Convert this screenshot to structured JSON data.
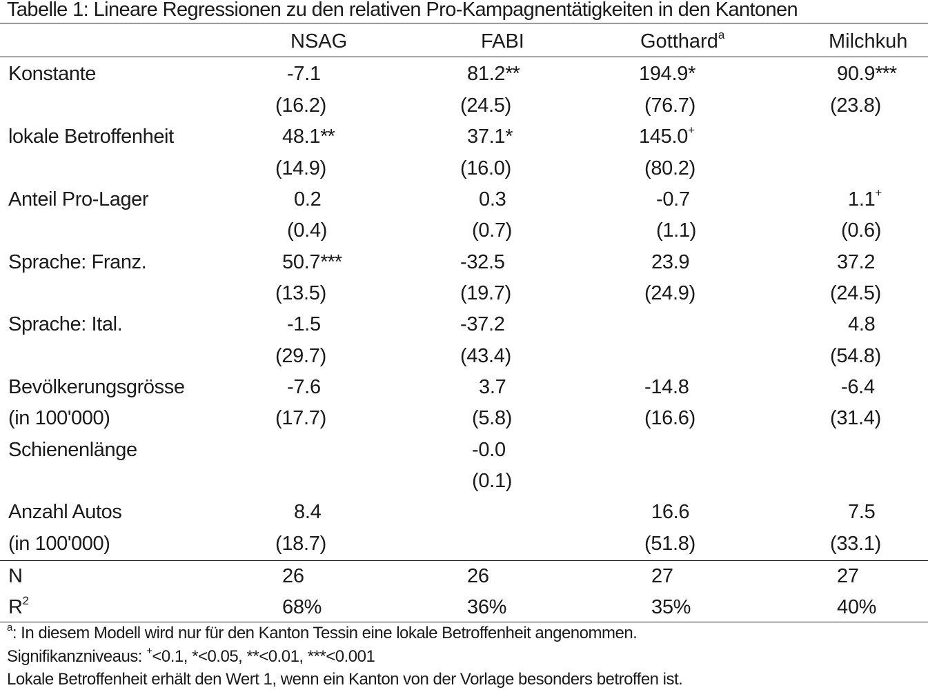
{
  "caption": "Tabelle 1: Lineare Regressionen zu den relativen Pro-Kampagnentätigkeiten in den Kantonen",
  "columns": [
    {
      "label": "NSAG",
      "sup": ""
    },
    {
      "label": "FABI",
      "sup": ""
    },
    {
      "label": "Gotthard",
      "sup": "a"
    },
    {
      "label": "Milchkuh",
      "sup": ""
    }
  ],
  "rows": {
    "konstante": {
      "label": "Konstante",
      "coef": [
        {
          "v": "-7.1",
          "s": "",
          "sup": ""
        },
        {
          "v": "81.2",
          "s": "**",
          "sup": ""
        },
        {
          "v": "194.9",
          "s": "*",
          "sup": ""
        },
        {
          "v": "90.9",
          "s": "***",
          "sup": ""
        }
      ],
      "se": [
        "(16.2)",
        "(24.5)",
        "(76.7)",
        "(23.8)"
      ]
    },
    "lokale": {
      "label": "lokale Betroffenheit",
      "coef": [
        {
          "v": "48.1",
          "s": "**",
          "sup": ""
        },
        {
          "v": "37.1",
          "s": "*",
          "sup": ""
        },
        {
          "v": "145.0",
          "s": "",
          "sup": "+"
        },
        {
          "v": "",
          "s": "",
          "sup": ""
        }
      ],
      "se": [
        "(14.9)",
        "(16.0)",
        "(80.2)",
        ""
      ]
    },
    "anteil": {
      "label": "Anteil Pro-Lager",
      "coef": [
        {
          "v": "0.2",
          "s": "",
          "sup": ""
        },
        {
          "v": "0.3",
          "s": "",
          "sup": ""
        },
        {
          "v": "-0.7",
          "s": "",
          "sup": ""
        },
        {
          "v": "1.1",
          "s": "",
          "sup": "+"
        }
      ],
      "se": [
        "(0.4)",
        "(0.7)",
        "(1.1)",
        "(0.6)"
      ]
    },
    "franz": {
      "label": "Sprache: Franz.",
      "coef": [
        {
          "v": "50.7",
          "s": "***",
          "sup": ""
        },
        {
          "v": "-32.5",
          "s": "",
          "sup": ""
        },
        {
          "v": "23.9",
          "s": "",
          "sup": ""
        },
        {
          "v": "37.2",
          "s": "",
          "sup": ""
        }
      ],
      "se": [
        "(13.5)",
        "(19.7)",
        "(24.9)",
        "(24.5)"
      ]
    },
    "ital": {
      "label": "Sprache: Ital.",
      "coef": [
        {
          "v": "-1.5",
          "s": "",
          "sup": ""
        },
        {
          "v": "-37.2",
          "s": "",
          "sup": ""
        },
        {
          "v": "",
          "s": "",
          "sup": ""
        },
        {
          "v": "4.8",
          "s": "",
          "sup": ""
        }
      ],
      "se": [
        "(29.7)",
        "(43.4)",
        "",
        "(54.8)"
      ]
    },
    "bevoelkerung": {
      "label": "Bevölkerungsgrösse",
      "label2": "(in 100'000)",
      "coef": [
        {
          "v": "-7.6",
          "s": "",
          "sup": ""
        },
        {
          "v": "3.7",
          "s": "",
          "sup": ""
        },
        {
          "v": "-14.8",
          "s": "",
          "sup": ""
        },
        {
          "v": "-6.4",
          "s": "",
          "sup": ""
        }
      ],
      "se": [
        "(17.7)",
        "(5.8)",
        "(16.6)",
        "(31.4)"
      ]
    },
    "schiene": {
      "label": "Schienenlänge",
      "coef": [
        {
          "v": "",
          "s": "",
          "sup": ""
        },
        {
          "v": "-0.0",
          "s": "",
          "sup": ""
        },
        {
          "v": "",
          "s": "",
          "sup": ""
        },
        {
          "v": "",
          "s": "",
          "sup": ""
        }
      ],
      "se": [
        "",
        "(0.1)",
        "",
        ""
      ]
    },
    "autos": {
      "label": "Anzahl Autos",
      "label2": "(in 100'000)",
      "coef": [
        {
          "v": "8.4",
          "s": "",
          "sup": ""
        },
        {
          "v": "",
          "s": "",
          "sup": ""
        },
        {
          "v": "16.6",
          "s": "",
          "sup": ""
        },
        {
          "v": "7.5",
          "s": "",
          "sup": ""
        }
      ],
      "se": [
        "(18.7)",
        "",
        "(51.8)",
        "(33.1)"
      ]
    }
  },
  "stats": {
    "n": {
      "label": "N",
      "values": [
        "26",
        "26",
        "27",
        "27"
      ]
    },
    "r2": {
      "label": "R",
      "label_sup": "2",
      "values": [
        "68%",
        "36%",
        "35%",
        "40%"
      ]
    }
  },
  "notes": {
    "note_a_sup": "a",
    "note_a": ": In diesem Modell wird nur für den Kanton Tessin eine lokale Betroffenheit angenommen.",
    "sig_prefix": "Signifikanzniveaus: ",
    "sig_plus_sup": "+",
    "sig_rest": "<0.1, *<0.05, **<0.01, ***<0.001",
    "lokal": "Lokale Betroffenheit erhält den Wert 1, wenn ein Kanton von der Vorlage besonders betroffen ist."
  }
}
